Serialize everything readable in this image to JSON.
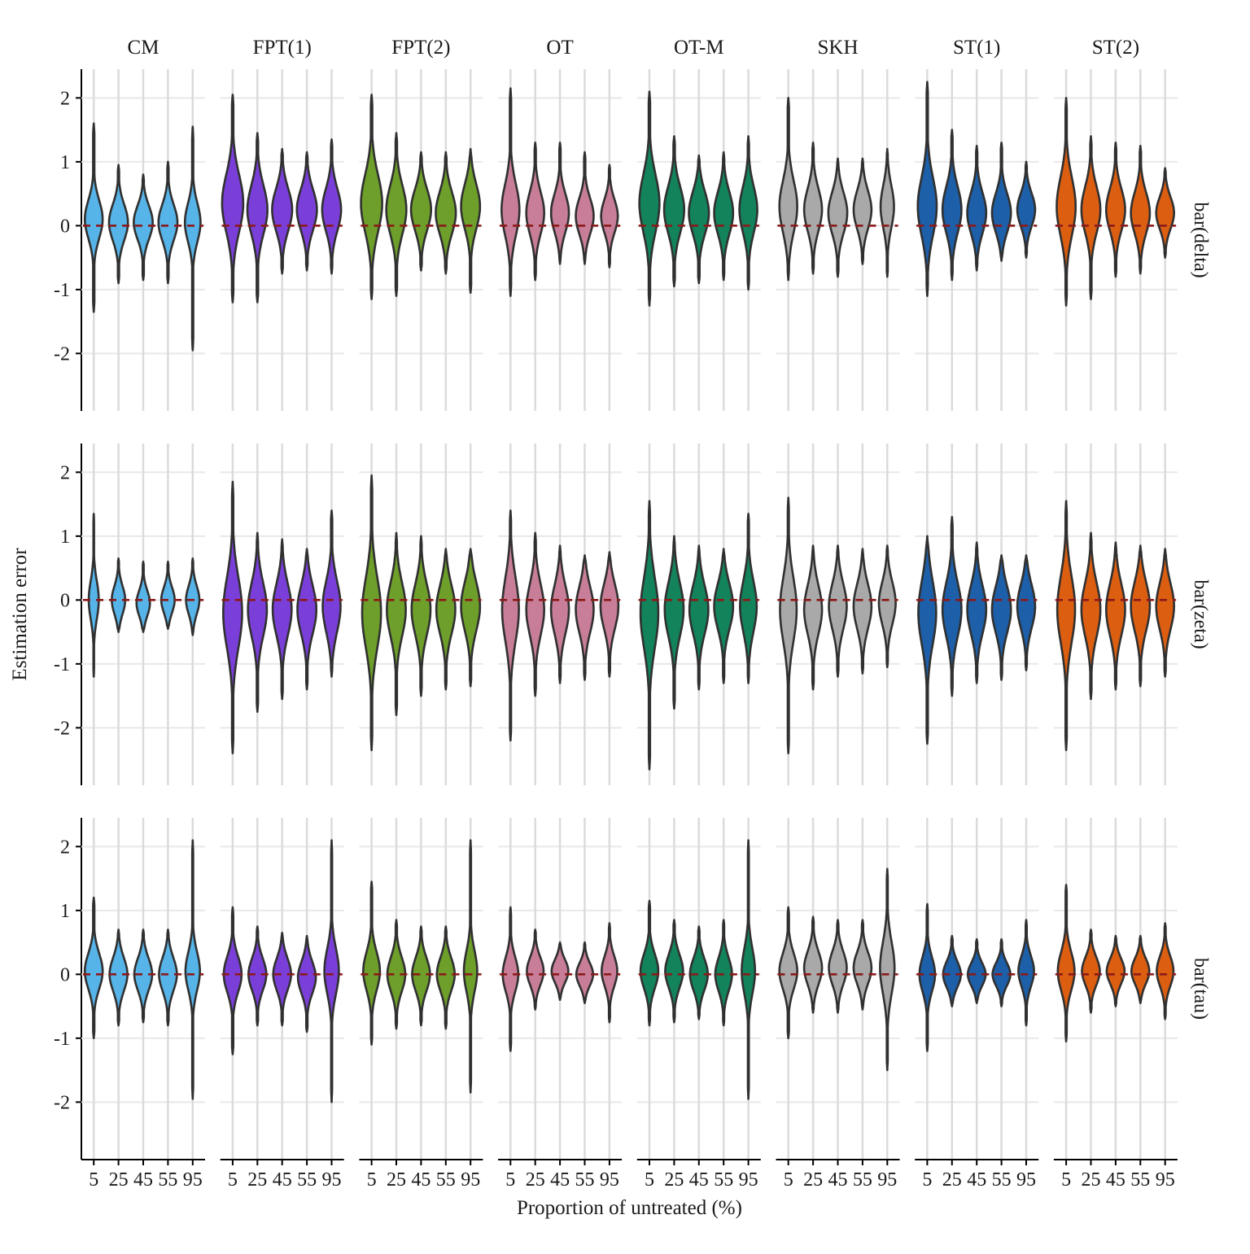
{
  "chart": {
    "xlabel": "Proportion of untreated (%)",
    "ylabel": "Estimation error"
  },
  "chart_data": {
    "type": "violin",
    "title": "",
    "xlabel": "Proportion of untreated (%)",
    "ylabel": "Estimation error",
    "x_categories": [
      "5",
      "25",
      "45",
      "55",
      "95"
    ],
    "col_facets": [
      "CM",
      "FPT(1)",
      "FPT(2)",
      "OT",
      "OT-M",
      "SKH",
      "ST(1)",
      "ST(2)"
    ],
    "row_facets": [
      "bar(delta)",
      "bar(zeta)",
      "bar(tau)"
    ],
    "yticks": [
      -2,
      -1,
      0,
      1,
      2
    ],
    "ylim": [
      -2.9,
      2.45
    ],
    "grid": true,
    "legend": "none",
    "reference_line": {
      "y": 0,
      "color": "#8B1A1A",
      "style": "dashed"
    },
    "outline_color": "#303030",
    "grid_color_vertical": "#DBDBDB",
    "grid_color_horizontal": "#E8E8E8",
    "facet_colors": {
      "CM": "#56B4E9",
      "FPT(1)": "#7B3FD9",
      "FPT(2)": "#6E9F2A",
      "OT": "#C87E98",
      "OT-M": "#12835A",
      "SKH": "#A9A9A9",
      "ST(1)": "#1D5FA8",
      "ST(2)": "#DC5E11"
    },
    "violin_format": "[min, max, mode, relative_width, sigma] — 5 violins per cell, ordered by x_categories",
    "violins": {
      "bar(delta)": {
        "CM": [
          [
            -1.35,
            1.6,
            0.1,
            0.8,
            0.3
          ],
          [
            -0.9,
            0.95,
            0.05,
            0.85,
            0.28
          ],
          [
            -0.85,
            0.8,
            0.05,
            0.85,
            0.26
          ],
          [
            -0.9,
            1.0,
            0.05,
            0.85,
            0.28
          ],
          [
            -1.95,
            1.55,
            0.05,
            0.7,
            0.3
          ]
        ],
        "FPT(1)": [
          [
            -1.2,
            2.05,
            0.35,
            0.95,
            0.45
          ],
          [
            -1.2,
            1.45,
            0.25,
            0.9,
            0.38
          ],
          [
            -0.75,
            1.2,
            0.25,
            0.9,
            0.33
          ],
          [
            -0.7,
            1.15,
            0.25,
            0.9,
            0.32
          ],
          [
            -0.75,
            1.35,
            0.25,
            0.85,
            0.33
          ]
        ],
        "FPT(2)": [
          [
            -1.15,
            2.05,
            0.35,
            0.95,
            0.45
          ],
          [
            -1.1,
            1.45,
            0.25,
            0.9,
            0.38
          ],
          [
            -0.7,
            1.15,
            0.25,
            0.9,
            0.32
          ],
          [
            -0.75,
            1.15,
            0.2,
            0.9,
            0.33
          ],
          [
            -1.05,
            1.2,
            0.3,
            0.85,
            0.35
          ]
        ],
        "OT": [
          [
            -1.1,
            2.15,
            0.25,
            0.8,
            0.4
          ],
          [
            -0.85,
            1.3,
            0.2,
            0.8,
            0.33
          ],
          [
            -0.6,
            1.3,
            0.2,
            0.8,
            0.3
          ],
          [
            -0.6,
            1.15,
            0.15,
            0.8,
            0.28
          ],
          [
            -0.65,
            0.95,
            0.15,
            0.75,
            0.26
          ]
        ],
        "OT-M": [
          [
            -1.25,
            2.1,
            0.35,
            0.9,
            0.45
          ],
          [
            -0.95,
            1.4,
            0.25,
            0.9,
            0.36
          ],
          [
            -0.9,
            1.1,
            0.2,
            0.9,
            0.33
          ],
          [
            -0.85,
            1.15,
            0.2,
            0.85,
            0.33
          ],
          [
            -1.0,
            1.4,
            0.25,
            0.8,
            0.36
          ]
        ],
        "SKH": [
          [
            -0.85,
            2.0,
            0.3,
            0.8,
            0.4
          ],
          [
            -0.75,
            1.3,
            0.25,
            0.8,
            0.33
          ],
          [
            -0.8,
            1.05,
            0.2,
            0.85,
            0.32
          ],
          [
            -0.6,
            1.05,
            0.25,
            0.8,
            0.3
          ],
          [
            -0.8,
            1.2,
            0.3,
            0.6,
            0.33
          ]
        ],
        "ST(1)": [
          [
            -1.1,
            2.25,
            0.3,
            0.85,
            0.45
          ],
          [
            -0.85,
            1.5,
            0.25,
            0.85,
            0.36
          ],
          [
            -0.7,
            1.25,
            0.2,
            0.85,
            0.32
          ],
          [
            -0.55,
            1.3,
            0.2,
            0.85,
            0.3
          ],
          [
            -0.5,
            1.0,
            0.25,
            0.8,
            0.26
          ]
        ],
        "ST(2)": [
          [
            -1.25,
            2.0,
            0.3,
            0.85,
            0.45
          ],
          [
            -1.15,
            1.4,
            0.25,
            0.85,
            0.36
          ],
          [
            -0.8,
            1.3,
            0.25,
            0.85,
            0.33
          ],
          [
            -0.75,
            1.25,
            0.2,
            0.85,
            0.32
          ],
          [
            -0.5,
            0.9,
            0.2,
            0.8,
            0.25
          ]
        ]
      },
      "bar(zeta)": {
        "CM": [
          [
            -1.2,
            1.35,
            0.0,
            0.45,
            0.3
          ],
          [
            -0.5,
            0.65,
            0.0,
            0.6,
            0.22
          ],
          [
            -0.5,
            0.6,
            -0.05,
            0.6,
            0.2
          ],
          [
            -0.45,
            0.6,
            0.0,
            0.6,
            0.2
          ],
          [
            -0.55,
            0.65,
            0.0,
            0.6,
            0.22
          ]
        ],
        "FPT(1)": [
          [
            -2.4,
            1.85,
            -0.2,
            0.85,
            0.55
          ],
          [
            -1.75,
            1.05,
            -0.15,
            0.85,
            0.42
          ],
          [
            -1.55,
            0.95,
            -0.15,
            0.85,
            0.4
          ],
          [
            -1.4,
            0.8,
            -0.15,
            0.85,
            0.38
          ],
          [
            -1.2,
            1.4,
            -0.1,
            0.8,
            0.4
          ]
        ],
        "FPT(2)": [
          [
            -2.35,
            1.95,
            -0.2,
            0.85,
            0.55
          ],
          [
            -1.8,
            1.05,
            -0.15,
            0.85,
            0.42
          ],
          [
            -1.5,
            1.0,
            -0.15,
            0.85,
            0.4
          ],
          [
            -1.4,
            0.8,
            -0.15,
            0.85,
            0.38
          ],
          [
            -1.35,
            0.8,
            -0.1,
            0.85,
            0.38
          ]
        ],
        "OT": [
          [
            -2.2,
            1.4,
            -0.15,
            0.75,
            0.5
          ],
          [
            -1.5,
            1.05,
            -0.15,
            0.8,
            0.4
          ],
          [
            -1.3,
            0.85,
            -0.15,
            0.8,
            0.38
          ],
          [
            -1.25,
            0.7,
            -0.15,
            0.8,
            0.36
          ],
          [
            -1.2,
            0.75,
            -0.1,
            0.8,
            0.35
          ]
        ],
        "OT-M": [
          [
            -2.65,
            1.55,
            -0.2,
            0.8,
            0.55
          ],
          [
            -1.7,
            1.0,
            -0.15,
            0.85,
            0.42
          ],
          [
            -1.4,
            0.85,
            -0.15,
            0.85,
            0.38
          ],
          [
            -1.3,
            0.8,
            -0.1,
            0.85,
            0.36
          ],
          [
            -1.3,
            1.35,
            -0.1,
            0.75,
            0.4
          ]
        ],
        "SKH": [
          [
            -2.4,
            1.6,
            -0.15,
            0.75,
            0.5
          ],
          [
            -1.4,
            0.85,
            -0.15,
            0.8,
            0.38
          ],
          [
            -1.2,
            0.85,
            -0.1,
            0.8,
            0.36
          ],
          [
            -1.15,
            0.8,
            -0.1,
            0.8,
            0.35
          ],
          [
            -1.05,
            0.85,
            -0.05,
            0.75,
            0.33
          ]
        ],
        "ST(1)": [
          [
            -2.25,
            1.0,
            -0.2,
            0.8,
            0.5
          ],
          [
            -1.5,
            1.3,
            -0.15,
            0.85,
            0.42
          ],
          [
            -1.3,
            0.9,
            -0.15,
            0.85,
            0.38
          ],
          [
            -1.25,
            0.7,
            -0.15,
            0.85,
            0.36
          ],
          [
            -1.1,
            0.7,
            -0.1,
            0.8,
            0.34
          ]
        ],
        "ST(2)": [
          [
            -2.35,
            1.55,
            -0.15,
            0.8,
            0.52
          ],
          [
            -1.55,
            1.05,
            -0.15,
            0.85,
            0.42
          ],
          [
            -1.4,
            0.9,
            -0.15,
            0.85,
            0.4
          ],
          [
            -1.35,
            0.85,
            -0.1,
            0.85,
            0.38
          ],
          [
            -1.2,
            0.8,
            -0.1,
            0.8,
            0.36
          ]
        ]
      },
      "bar(tau)": {
        "CM": [
          [
            -1.0,
            1.2,
            0.05,
            0.8,
            0.28
          ],
          [
            -0.8,
            0.7,
            0.0,
            0.8,
            0.26
          ],
          [
            -0.75,
            0.7,
            0.0,
            0.8,
            0.25
          ],
          [
            -0.8,
            0.7,
            0.0,
            0.8,
            0.26
          ],
          [
            -1.95,
            2.1,
            0.05,
            0.65,
            0.3
          ]
        ],
        "FPT(1)": [
          [
            -1.25,
            1.05,
            0.0,
            0.8,
            0.28
          ],
          [
            -0.8,
            0.75,
            0.0,
            0.8,
            0.25
          ],
          [
            -0.8,
            0.65,
            0.0,
            0.8,
            0.25
          ],
          [
            -0.9,
            0.6,
            -0.05,
            0.8,
            0.25
          ],
          [
            -2.0,
            2.1,
            0.05,
            0.65,
            0.35
          ]
        ],
        "FPT(2)": [
          [
            -1.1,
            1.45,
            0.05,
            0.75,
            0.3
          ],
          [
            -0.85,
            0.85,
            0.0,
            0.8,
            0.27
          ],
          [
            -0.8,
            0.75,
            0.0,
            0.8,
            0.26
          ],
          [
            -0.85,
            0.75,
            0.0,
            0.8,
            0.26
          ],
          [
            -1.85,
            2.1,
            0.05,
            0.6,
            0.32
          ]
        ],
        "OT": [
          [
            -1.2,
            1.05,
            0.0,
            0.7,
            0.27
          ],
          [
            -0.55,
            0.7,
            0.05,
            0.75,
            0.22
          ],
          [
            -0.4,
            0.5,
            0.05,
            0.75,
            0.18
          ],
          [
            -0.45,
            0.5,
            0.0,
            0.75,
            0.18
          ],
          [
            -0.75,
            0.8,
            0.05,
            0.7,
            0.24
          ]
        ],
        "OT-M": [
          [
            -0.8,
            1.15,
            0.05,
            0.8,
            0.27
          ],
          [
            -0.75,
            0.85,
            0.05,
            0.8,
            0.26
          ],
          [
            -0.7,
            0.75,
            0.0,
            0.8,
            0.25
          ],
          [
            -0.8,
            0.85,
            0.0,
            0.75,
            0.26
          ],
          [
            -1.95,
            2.1,
            0.05,
            0.6,
            0.35
          ]
        ],
        "SKH": [
          [
            -1.0,
            1.05,
            0.05,
            0.8,
            0.28
          ],
          [
            -0.6,
            0.9,
            0.1,
            0.8,
            0.26
          ],
          [
            -0.6,
            0.85,
            0.1,
            0.8,
            0.26
          ],
          [
            -0.55,
            0.85,
            0.1,
            0.8,
            0.25
          ],
          [
            -1.5,
            1.65,
            0.1,
            0.65,
            0.4
          ]
        ],
        "ST(1)": [
          [
            -1.2,
            1.1,
            0.0,
            0.7,
            0.27
          ],
          [
            -0.5,
            0.6,
            0.0,
            0.8,
            0.2
          ],
          [
            -0.45,
            0.55,
            0.0,
            0.8,
            0.18
          ],
          [
            -0.5,
            0.55,
            0.0,
            0.8,
            0.18
          ],
          [
            -0.8,
            0.85,
            0.05,
            0.7,
            0.24
          ]
        ],
        "ST(2)": [
          [
            -1.05,
            1.4,
            0.05,
            0.75,
            0.3
          ],
          [
            -0.6,
            0.7,
            0.05,
            0.8,
            0.22
          ],
          [
            -0.5,
            0.6,
            0.05,
            0.8,
            0.2
          ],
          [
            -0.45,
            0.6,
            0.05,
            0.8,
            0.2
          ],
          [
            -0.7,
            0.8,
            0.05,
            0.75,
            0.24
          ]
        ]
      }
    }
  }
}
